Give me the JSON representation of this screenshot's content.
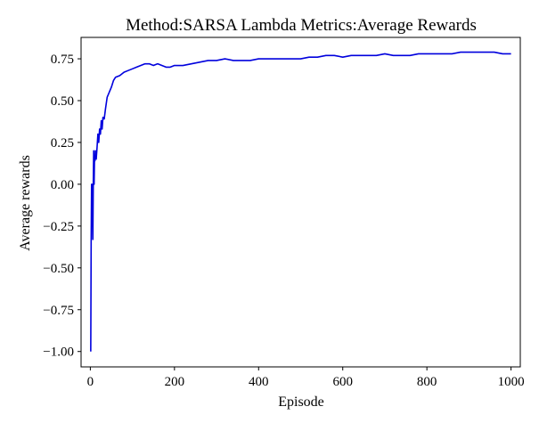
{
  "chart_data": {
    "type": "line",
    "title": "Method:SARSA Lambda   Metrics:Average Rewards",
    "xlabel": "Episode",
    "ylabel": "Average rewards",
    "xlim": [
      -22,
      1022
    ],
    "ylim": [
      -1.092,
      0.878
    ],
    "xticks": [
      0,
      200,
      400,
      600,
      800,
      1000
    ],
    "yticks": [
      -1.0,
      -0.75,
      -0.5,
      -0.25,
      0.0,
      0.25,
      0.5,
      0.75
    ],
    "xtick_labels": [
      "0",
      "200",
      "400",
      "600",
      "800",
      "1000"
    ],
    "ytick_labels": [
      "−1.00",
      "−0.75",
      "−0.50",
      "−0.25",
      "0.00",
      "0.25",
      "0.50",
      "0.75"
    ],
    "grid": false,
    "legend": null,
    "series": [
      {
        "color": "#0000dd",
        "x": [
          1,
          2,
          3,
          4,
          5,
          6,
          7,
          8,
          9,
          10,
          11,
          12,
          14,
          16,
          18,
          20,
          22,
          24,
          26,
          28,
          30,
          33,
          36,
          40,
          45,
          50,
          55,
          60,
          70,
          80,
          90,
          100,
          110,
          120,
          130,
          140,
          150,
          160,
          170,
          180,
          190,
          200,
          220,
          240,
          260,
          280,
          300,
          320,
          340,
          360,
          380,
          400,
          420,
          440,
          460,
          480,
          500,
          520,
          540,
          560,
          580,
          600,
          620,
          640,
          660,
          680,
          700,
          720,
          740,
          760,
          780,
          800,
          820,
          840,
          860,
          880,
          900,
          920,
          940,
          960,
          980,
          1000
        ],
        "y": [
          -1.0,
          -0.33,
          0.0,
          -0.2,
          0.0,
          -0.33,
          0.0,
          0.2,
          0.0,
          0.17,
          0.14,
          0.2,
          0.15,
          0.22,
          0.3,
          0.25,
          0.33,
          0.3,
          0.38,
          0.33,
          0.4,
          0.39,
          0.45,
          0.52,
          0.55,
          0.58,
          0.62,
          0.64,
          0.65,
          0.67,
          0.68,
          0.69,
          0.7,
          0.71,
          0.72,
          0.72,
          0.71,
          0.72,
          0.71,
          0.7,
          0.7,
          0.71,
          0.71,
          0.72,
          0.73,
          0.74,
          0.74,
          0.75,
          0.74,
          0.74,
          0.74,
          0.75,
          0.75,
          0.75,
          0.75,
          0.75,
          0.75,
          0.76,
          0.76,
          0.77,
          0.77,
          0.76,
          0.77,
          0.77,
          0.77,
          0.77,
          0.78,
          0.77,
          0.77,
          0.77,
          0.78,
          0.78,
          0.78,
          0.78,
          0.78,
          0.79,
          0.79,
          0.79,
          0.79,
          0.79,
          0.78,
          0.78
        ]
      }
    ]
  }
}
